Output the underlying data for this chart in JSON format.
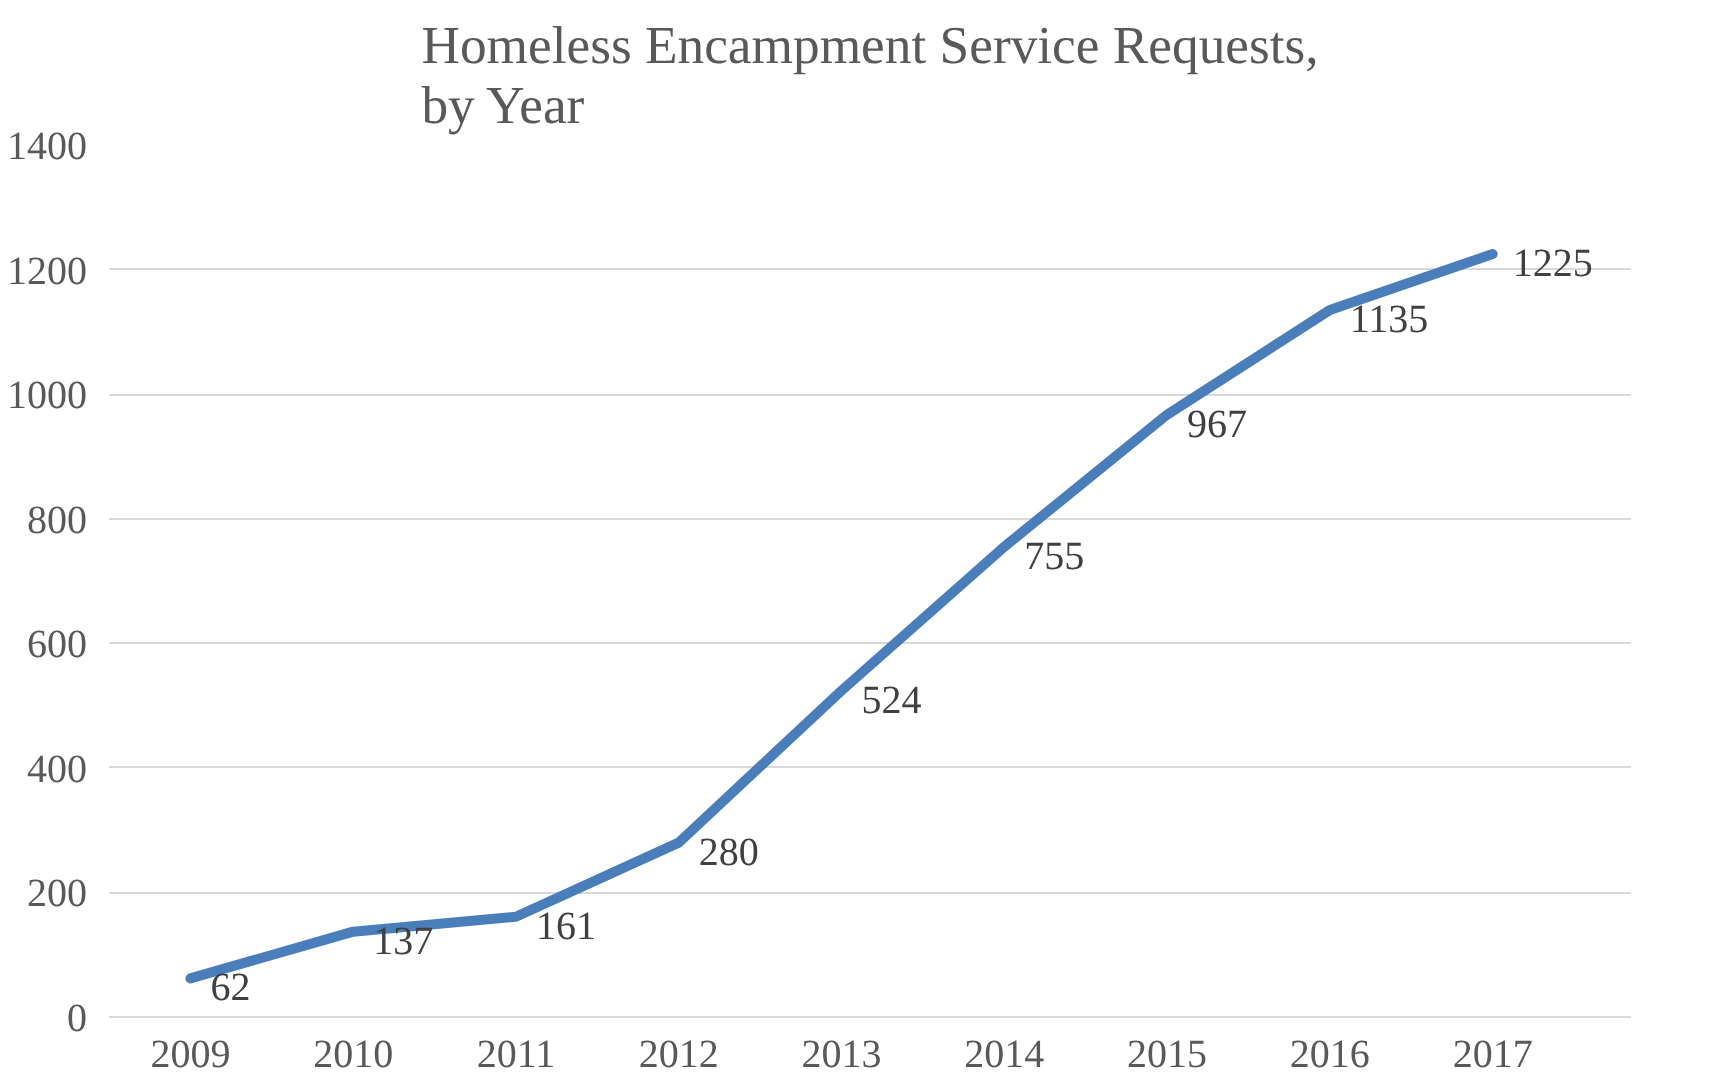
{
  "chart_data": {
    "type": "line",
    "title": "Homeless Encampment Service Requests, by Year",
    "categories": [
      "2009",
      "2010",
      "2011",
      "2012",
      "2013",
      "2014",
      "2015",
      "2016",
      "2017"
    ],
    "series": [
      {
        "color": "#4a7ebb",
        "values": [
          62,
          137,
          161,
          280,
          524,
          755,
          967,
          1135,
          1225
        ]
      }
    ],
    "ylim": [
      0,
      1400
    ],
    "yticks": [
      0,
      200,
      400,
      600,
      800,
      1000,
      1200,
      1400
    ],
    "grid": "y",
    "data_labels": true,
    "marker": "none",
    "line_style": "solid"
  }
}
